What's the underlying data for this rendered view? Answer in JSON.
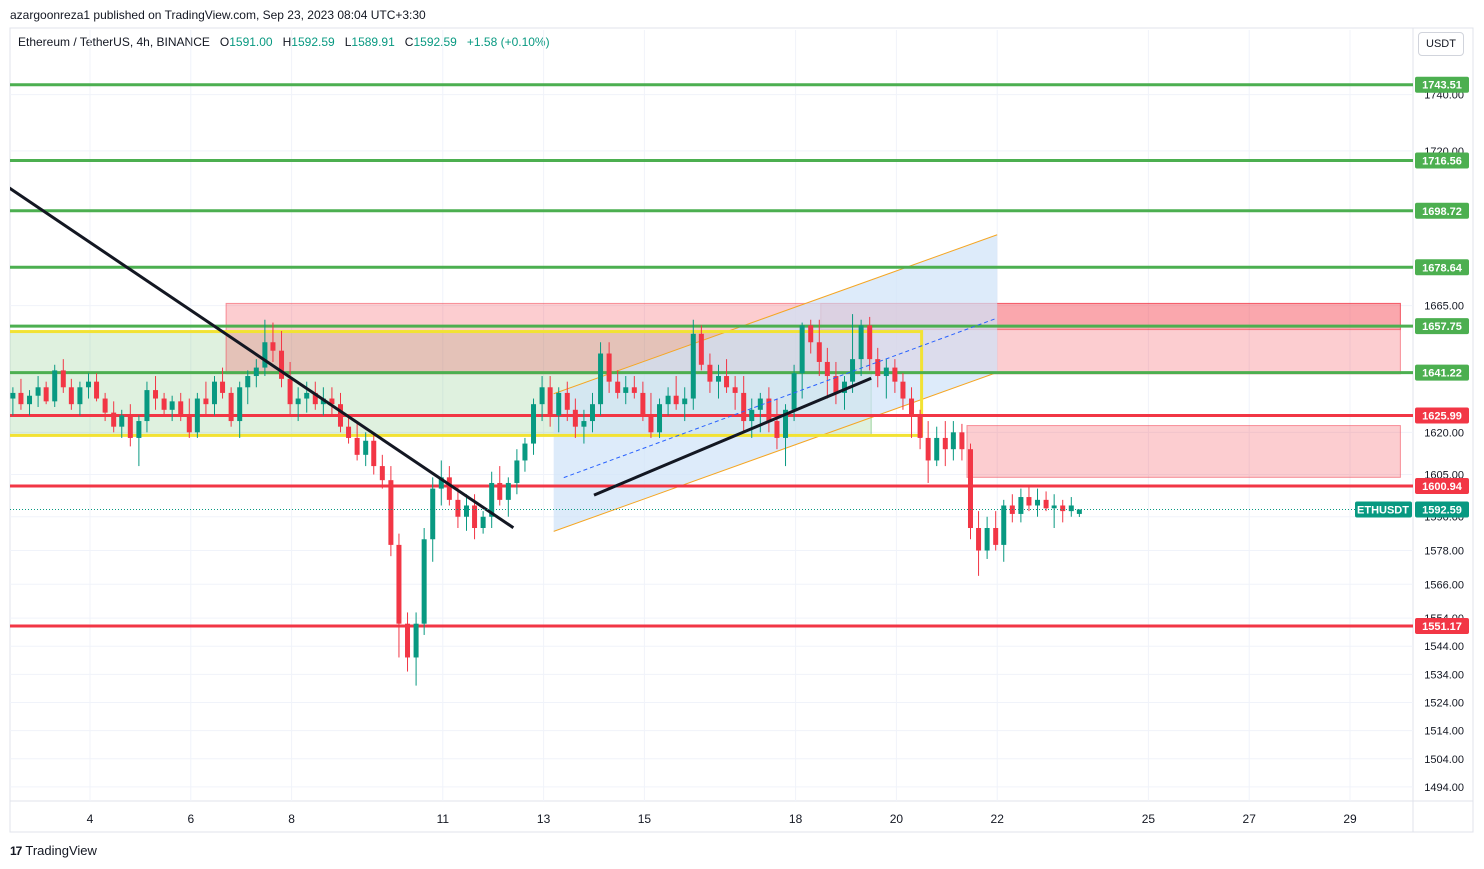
{
  "header": {
    "published": "azargoonreza1 published on TradingView.com, Sep 23, 2023 08:04 UTC+3:30"
  },
  "legend": {
    "symbol": "Ethereum / TetherUS, 4h, BINANCE",
    "o_label": "O",
    "o": "1591.00",
    "h_label": "H",
    "h": "1592.59",
    "l_label": "L",
    "l": "1589.91",
    "c_label": "C",
    "c": "1592.59",
    "change": "+1.58 (+0.10%)"
  },
  "currency_button": "USDT",
  "brand": {
    "logo": "17",
    "name": "TradingView"
  },
  "colors": {
    "up": "#089981",
    "down": "#f23645",
    "support": "#4caf50",
    "resistance": "#f23645",
    "channel_fill": "#cfe2f8",
    "channel_border": "#f5a623",
    "zone_yellow": "#f2e233"
  },
  "chart_data": {
    "type": "candlestick",
    "symbol": "ETHUSDT",
    "interval": "4h",
    "ylim": [
      1489,
      1753
    ],
    "x_ticks": [
      {
        "label": "4",
        "day": 4
      },
      {
        "label": "6",
        "day": 6
      },
      {
        "label": "8",
        "day": 8
      },
      {
        "label": "11",
        "day": 11
      },
      {
        "label": "13",
        "day": 13
      },
      {
        "label": "15",
        "day": 15
      },
      {
        "label": "18",
        "day": 18
      },
      {
        "label": "20",
        "day": 20
      },
      {
        "label": "22",
        "day": 22
      },
      {
        "label": "25",
        "day": 25
      },
      {
        "label": "27",
        "day": 27
      },
      {
        "label": "29",
        "day": 29
      }
    ],
    "y_ticks": [
      "1740.00",
      "1720.00",
      "1665.00",
      "1620.00",
      "1605.00",
      "1590.00",
      "1578.00",
      "1566.00",
      "1554.00",
      "1544.00",
      "1534.00",
      "1524.00",
      "1514.00",
      "1504.00",
      "1494.00"
    ],
    "last_price": {
      "label": "ETHUSDT",
      "value": 1592.59
    },
    "levels": [
      {
        "value": 1743.51,
        "kind": "support",
        "label": "1743.51"
      },
      {
        "value": 1716.56,
        "kind": "support",
        "label": "1716.56"
      },
      {
        "value": 1698.72,
        "kind": "support",
        "label": "1698.72"
      },
      {
        "value": 1678.64,
        "kind": "support",
        "label": "1678.64"
      },
      {
        "value": 1657.75,
        "kind": "support",
        "label": "1657.75"
      },
      {
        "value": 1641.22,
        "kind": "support",
        "label": "1641.22"
      },
      {
        "value": 1625.99,
        "kind": "resistance",
        "label": "1625.99"
      },
      {
        "value": 1600.94,
        "kind": "resistance",
        "label": "1600.94"
      },
      {
        "value": 1551.17,
        "kind": "resistance",
        "label": "1551.17"
      }
    ],
    "zones": [
      {
        "name": "green-range",
        "day_from": 2.2,
        "day_to": 19.5,
        "top": 1655.8,
        "bottom": 1618.9,
        "color": "#4caf50"
      },
      {
        "name": "red-supply",
        "day_from": 6.7,
        "day_to": 30.0,
        "top": 1665.8,
        "bottom": 1640.8,
        "color": "#f23645"
      },
      {
        "name": "red-supply-dark",
        "day_from": 18.5,
        "day_to": 30.0,
        "top": 1665.8,
        "bottom": 1656.5,
        "color": "#f23645"
      },
      {
        "name": "red-demand",
        "day_from": 21.4,
        "day_to": 30.0,
        "top": 1622.4,
        "bottom": 1604.0,
        "color": "#f23645"
      }
    ],
    "yellow_box": {
      "day_from": 2.2,
      "day_to": 20.5,
      "top": 1655.8,
      "bottom": 1618.9
    },
    "channel": [
      {
        "day": 13.2,
        "price": 1633.7
      },
      {
        "day": 22.0,
        "price": 1690.2
      },
      {
        "day": 22.0,
        "price": 1641.3
      },
      {
        "day": 13.2,
        "price": 1584.8
      }
    ],
    "trendlines": [
      {
        "from": {
          "day": 2.2,
          "price": 1709.2
        },
        "to": {
          "day": 12.4,
          "price": 1586.1
        }
      },
      {
        "from": {
          "day": 14.0,
          "price": 1597.7
        },
        "to": {
          "day": 19.5,
          "price": 1639.2
        }
      },
      {
        "from": {
          "day": 13.4,
          "price": 1603.9
        },
        "to": {
          "day": 22.0,
          "price": 1660.6
        },
        "dashed": true
      }
    ],
    "candles": [
      {
        "day": 2.3,
        "o": 1637,
        "h": 1642,
        "l": 1630,
        "c": 1632
      },
      {
        "day": 2.47,
        "o": 1632,
        "h": 1636,
        "l": 1626,
        "c": 1634
      },
      {
        "day": 2.63,
        "o": 1634,
        "h": 1639,
        "l": 1628,
        "c": 1630
      },
      {
        "day": 2.8,
        "o": 1630,
        "h": 1635,
        "l": 1626,
        "c": 1633
      },
      {
        "day": 2.97,
        "o": 1633,
        "h": 1640,
        "l": 1629,
        "c": 1636
      },
      {
        "day": 3.13,
        "o": 1636,
        "h": 1638,
        "l": 1630,
        "c": 1631
      },
      {
        "day": 3.3,
        "o": 1631,
        "h": 1644,
        "l": 1629,
        "c": 1642
      },
      {
        "day": 3.47,
        "o": 1642,
        "h": 1646,
        "l": 1634,
        "c": 1636
      },
      {
        "day": 3.63,
        "o": 1636,
        "h": 1639,
        "l": 1628,
        "c": 1630
      },
      {
        "day": 3.8,
        "o": 1630,
        "h": 1638,
        "l": 1626,
        "c": 1636
      },
      {
        "day": 3.97,
        "o": 1636,
        "h": 1641,
        "l": 1632,
        "c": 1638
      },
      {
        "day": 4.13,
        "o": 1638,
        "h": 1641,
        "l": 1631,
        "c": 1632
      },
      {
        "day": 4.3,
        "o": 1632,
        "h": 1634,
        "l": 1624,
        "c": 1627
      },
      {
        "day": 4.47,
        "o": 1627,
        "h": 1631,
        "l": 1620,
        "c": 1622
      },
      {
        "day": 4.63,
        "o": 1622,
        "h": 1628,
        "l": 1618,
        "c": 1626
      },
      {
        "day": 4.8,
        "o": 1626,
        "h": 1630,
        "l": 1615,
        "c": 1618
      },
      {
        "day": 4.97,
        "o": 1618,
        "h": 1626,
        "l": 1608,
        "c": 1624
      },
      {
        "day": 5.13,
        "o": 1624,
        "h": 1638,
        "l": 1620,
        "c": 1635
      },
      {
        "day": 5.3,
        "o": 1635,
        "h": 1640,
        "l": 1628,
        "c": 1632
      },
      {
        "day": 5.47,
        "o": 1632,
        "h": 1634,
        "l": 1626,
        "c": 1628
      },
      {
        "day": 5.63,
        "o": 1628,
        "h": 1633,
        "l": 1624,
        "c": 1631
      },
      {
        "day": 5.8,
        "o": 1631,
        "h": 1634,
        "l": 1624,
        "c": 1626
      },
      {
        "day": 5.97,
        "o": 1626,
        "h": 1632,
        "l": 1618,
        "c": 1620
      },
      {
        "day": 6.13,
        "o": 1620,
        "h": 1634,
        "l": 1618,
        "c": 1632
      },
      {
        "day": 6.3,
        "o": 1632,
        "h": 1638,
        "l": 1626,
        "c": 1630
      },
      {
        "day": 6.47,
        "o": 1630,
        "h": 1640,
        "l": 1626,
        "c": 1638
      },
      {
        "day": 6.63,
        "o": 1638,
        "h": 1643,
        "l": 1632,
        "c": 1634
      },
      {
        "day": 6.8,
        "o": 1634,
        "h": 1636,
        "l": 1622,
        "c": 1624
      },
      {
        "day": 6.97,
        "o": 1624,
        "h": 1638,
        "l": 1618,
        "c": 1636
      },
      {
        "day": 7.13,
        "o": 1636,
        "h": 1642,
        "l": 1630,
        "c": 1640
      },
      {
        "day": 7.3,
        "o": 1640,
        "h": 1646,
        "l": 1636,
        "c": 1643
      },
      {
        "day": 7.47,
        "o": 1643,
        "h": 1660,
        "l": 1640,
        "c": 1652
      },
      {
        "day": 7.63,
        "o": 1652,
        "h": 1659,
        "l": 1645,
        "c": 1649
      },
      {
        "day": 7.8,
        "o": 1649,
        "h": 1656,
        "l": 1636,
        "c": 1639
      },
      {
        "day": 7.97,
        "o": 1639,
        "h": 1645,
        "l": 1626,
        "c": 1630
      },
      {
        "day": 8.13,
        "o": 1630,
        "h": 1636,
        "l": 1624,
        "c": 1632
      },
      {
        "day": 8.3,
        "o": 1632,
        "h": 1638,
        "l": 1627,
        "c": 1634
      },
      {
        "day": 8.47,
        "o": 1634,
        "h": 1638,
        "l": 1628,
        "c": 1630
      },
      {
        "day": 8.63,
        "o": 1630,
        "h": 1636,
        "l": 1626,
        "c": 1632
      },
      {
        "day": 8.8,
        "o": 1632,
        "h": 1636,
        "l": 1626,
        "c": 1630
      },
      {
        "day": 8.97,
        "o": 1630,
        "h": 1634,
        "l": 1620,
        "c": 1622
      },
      {
        "day": 9.13,
        "o": 1622,
        "h": 1626,
        "l": 1616,
        "c": 1618
      },
      {
        "day": 9.3,
        "o": 1618,
        "h": 1624,
        "l": 1610,
        "c": 1612
      },
      {
        "day": 9.47,
        "o": 1612,
        "h": 1620,
        "l": 1608,
        "c": 1617
      },
      {
        "day": 9.63,
        "o": 1617,
        "h": 1620,
        "l": 1605,
        "c": 1608
      },
      {
        "day": 9.8,
        "o": 1608,
        "h": 1612,
        "l": 1600,
        "c": 1603
      },
      {
        "day": 9.97,
        "o": 1603,
        "h": 1608,
        "l": 1576,
        "c": 1580
      },
      {
        "day": 10.13,
        "o": 1580,
        "h": 1584,
        "l": 1540,
        "c": 1552
      },
      {
        "day": 10.3,
        "o": 1552,
        "h": 1556,
        "l": 1535,
        "c": 1540
      },
      {
        "day": 10.47,
        "o": 1540,
        "h": 1556,
        "l": 1530,
        "c": 1552
      },
      {
        "day": 10.63,
        "o": 1552,
        "h": 1586,
        "l": 1548,
        "c": 1582
      },
      {
        "day": 10.8,
        "o": 1582,
        "h": 1604,
        "l": 1574,
        "c": 1600
      },
      {
        "day": 10.97,
        "o": 1600,
        "h": 1610,
        "l": 1594,
        "c": 1604
      },
      {
        "day": 11.13,
        "o": 1604,
        "h": 1608,
        "l": 1594,
        "c": 1596
      },
      {
        "day": 11.3,
        "o": 1596,
        "h": 1601,
        "l": 1586,
        "c": 1590
      },
      {
        "day": 11.47,
        "o": 1590,
        "h": 1598,
        "l": 1585,
        "c": 1594
      },
      {
        "day": 11.63,
        "o": 1594,
        "h": 1598,
        "l": 1582,
        "c": 1586
      },
      {
        "day": 11.8,
        "o": 1586,
        "h": 1592,
        "l": 1584,
        "c": 1590
      },
      {
        "day": 11.97,
        "o": 1590,
        "h": 1606,
        "l": 1586,
        "c": 1602
      },
      {
        "day": 12.13,
        "o": 1602,
        "h": 1608,
        "l": 1594,
        "c": 1596
      },
      {
        "day": 12.3,
        "o": 1596,
        "h": 1604,
        "l": 1590,
        "c": 1602
      },
      {
        "day": 12.47,
        "o": 1602,
        "h": 1614,
        "l": 1598,
        "c": 1610
      },
      {
        "day": 12.63,
        "o": 1610,
        "h": 1618,
        "l": 1606,
        "c": 1616
      },
      {
        "day": 12.8,
        "o": 1616,
        "h": 1632,
        "l": 1612,
        "c": 1630
      },
      {
        "day": 12.97,
        "o": 1630,
        "h": 1640,
        "l": 1624,
        "c": 1636
      },
      {
        "day": 13.13,
        "o": 1636,
        "h": 1640,
        "l": 1622,
        "c": 1626
      },
      {
        "day": 13.3,
        "o": 1626,
        "h": 1636,
        "l": 1620,
        "c": 1634
      },
      {
        "day": 13.47,
        "o": 1634,
        "h": 1638,
        "l": 1624,
        "c": 1628
      },
      {
        "day": 13.63,
        "o": 1628,
        "h": 1632,
        "l": 1618,
        "c": 1622
      },
      {
        "day": 13.8,
        "o": 1622,
        "h": 1628,
        "l": 1616,
        "c": 1624
      },
      {
        "day": 13.97,
        "o": 1624,
        "h": 1634,
        "l": 1620,
        "c": 1630
      },
      {
        "day": 14.13,
        "o": 1630,
        "h": 1652,
        "l": 1626,
        "c": 1648
      },
      {
        "day": 14.3,
        "o": 1648,
        "h": 1652,
        "l": 1634,
        "c": 1638
      },
      {
        "day": 14.47,
        "o": 1638,
        "h": 1642,
        "l": 1632,
        "c": 1634
      },
      {
        "day": 14.63,
        "o": 1634,
        "h": 1640,
        "l": 1630,
        "c": 1636
      },
      {
        "day": 14.8,
        "o": 1636,
        "h": 1640,
        "l": 1632,
        "c": 1634
      },
      {
        "day": 14.97,
        "o": 1634,
        "h": 1638,
        "l": 1624,
        "c": 1626
      },
      {
        "day": 15.13,
        "o": 1626,
        "h": 1634,
        "l": 1618,
        "c": 1620
      },
      {
        "day": 15.3,
        "o": 1620,
        "h": 1632,
        "l": 1618,
        "c": 1630
      },
      {
        "day": 15.47,
        "o": 1630,
        "h": 1636,
        "l": 1626,
        "c": 1633
      },
      {
        "day": 15.63,
        "o": 1633,
        "h": 1640,
        "l": 1628,
        "c": 1630
      },
      {
        "day": 15.8,
        "o": 1630,
        "h": 1636,
        "l": 1624,
        "c": 1632
      },
      {
        "day": 15.97,
        "o": 1632,
        "h": 1660,
        "l": 1628,
        "c": 1655
      },
      {
        "day": 16.13,
        "o": 1655,
        "h": 1658,
        "l": 1642,
        "c": 1644
      },
      {
        "day": 16.3,
        "o": 1644,
        "h": 1648,
        "l": 1634,
        "c": 1638
      },
      {
        "day": 16.47,
        "o": 1638,
        "h": 1644,
        "l": 1632,
        "c": 1640
      },
      {
        "day": 16.63,
        "o": 1640,
        "h": 1646,
        "l": 1634,
        "c": 1636
      },
      {
        "day": 16.8,
        "o": 1636,
        "h": 1640,
        "l": 1628,
        "c": 1634
      },
      {
        "day": 16.97,
        "o": 1634,
        "h": 1640,
        "l": 1620,
        "c": 1624
      },
      {
        "day": 17.13,
        "o": 1624,
        "h": 1632,
        "l": 1618,
        "c": 1628
      },
      {
        "day": 17.3,
        "o": 1628,
        "h": 1634,
        "l": 1620,
        "c": 1632
      },
      {
        "day": 17.47,
        "o": 1632,
        "h": 1636,
        "l": 1620,
        "c": 1624
      },
      {
        "day": 17.63,
        "o": 1624,
        "h": 1632,
        "l": 1614,
        "c": 1618
      },
      {
        "day": 17.8,
        "o": 1618,
        "h": 1630,
        "l": 1608,
        "c": 1628
      },
      {
        "day": 17.97,
        "o": 1628,
        "h": 1644,
        "l": 1624,
        "c": 1641
      },
      {
        "day": 18.13,
        "o": 1641,
        "h": 1659,
        "l": 1632,
        "c": 1658
      },
      {
        "day": 18.3,
        "o": 1658,
        "h": 1660,
        "l": 1648,
        "c": 1652
      },
      {
        "day": 18.47,
        "o": 1652,
        "h": 1660,
        "l": 1640,
        "c": 1645
      },
      {
        "day": 18.63,
        "o": 1645,
        "h": 1650,
        "l": 1632,
        "c": 1640
      },
      {
        "day": 18.8,
        "o": 1640,
        "h": 1645,
        "l": 1630,
        "c": 1634
      },
      {
        "day": 18.97,
        "o": 1634,
        "h": 1640,
        "l": 1628,
        "c": 1638
      },
      {
        "day": 19.13,
        "o": 1638,
        "h": 1662,
        "l": 1634,
        "c": 1646
      },
      {
        "day": 19.3,
        "o": 1646,
        "h": 1660,
        "l": 1640,
        "c": 1658
      },
      {
        "day": 19.47,
        "o": 1658,
        "h": 1661,
        "l": 1642,
        "c": 1646
      },
      {
        "day": 19.63,
        "o": 1646,
        "h": 1650,
        "l": 1636,
        "c": 1640
      },
      {
        "day": 19.8,
        "o": 1640,
        "h": 1646,
        "l": 1632,
        "c": 1643
      },
      {
        "day": 19.97,
        "o": 1643,
        "h": 1646,
        "l": 1634,
        "c": 1638
      },
      {
        "day": 20.13,
        "o": 1638,
        "h": 1641,
        "l": 1628,
        "c": 1632
      },
      {
        "day": 20.3,
        "o": 1632,
        "h": 1636,
        "l": 1618,
        "c": 1626
      },
      {
        "day": 20.47,
        "o": 1626,
        "h": 1628,
        "l": 1614,
        "c": 1618
      },
      {
        "day": 20.63,
        "o": 1618,
        "h": 1624,
        "l": 1602,
        "c": 1610
      },
      {
        "day": 20.8,
        "o": 1610,
        "h": 1622,
        "l": 1608,
        "c": 1618
      },
      {
        "day": 20.97,
        "o": 1618,
        "h": 1624,
        "l": 1608,
        "c": 1614
      },
      {
        "day": 21.13,
        "o": 1614,
        "h": 1624,
        "l": 1610,
        "c": 1620
      },
      {
        "day": 21.3,
        "o": 1620,
        "h": 1623,
        "l": 1610,
        "c": 1614
      },
      {
        "day": 21.47,
        "o": 1614,
        "h": 1616,
        "l": 1582,
        "c": 1586
      },
      {
        "day": 21.63,
        "o": 1586,
        "h": 1592,
        "l": 1569,
        "c": 1578
      },
      {
        "day": 21.8,
        "o": 1578,
        "h": 1590,
        "l": 1575,
        "c": 1586
      },
      {
        "day": 21.97,
        "o": 1586,
        "h": 1592,
        "l": 1578,
        "c": 1580
      },
      {
        "day": 22.13,
        "o": 1580,
        "h": 1596,
        "l": 1574,
        "c": 1594
      },
      {
        "day": 22.3,
        "o": 1594,
        "h": 1598,
        "l": 1588,
        "c": 1591
      },
      {
        "day": 22.47,
        "o": 1591,
        "h": 1600,
        "l": 1588,
        "c": 1597
      },
      {
        "day": 22.63,
        "o": 1597,
        "h": 1601,
        "l": 1592,
        "c": 1594
      },
      {
        "day": 22.8,
        "o": 1594,
        "h": 1600,
        "l": 1590,
        "c": 1596
      },
      {
        "day": 22.97,
        "o": 1596,
        "h": 1599,
        "l": 1592,
        "c": 1593
      },
      {
        "day": 23.13,
        "o": 1593,
        "h": 1598,
        "l": 1586,
        "c": 1594
      },
      {
        "day": 23.3,
        "o": 1594,
        "h": 1596,
        "l": 1588,
        "c": 1592
      },
      {
        "day": 23.47,
        "o": 1592,
        "h": 1597,
        "l": 1590,
        "c": 1594
      },
      {
        "day": 23.63,
        "o": 1591,
        "h": 1592.59,
        "l": 1589.91,
        "c": 1592.59
      }
    ]
  }
}
